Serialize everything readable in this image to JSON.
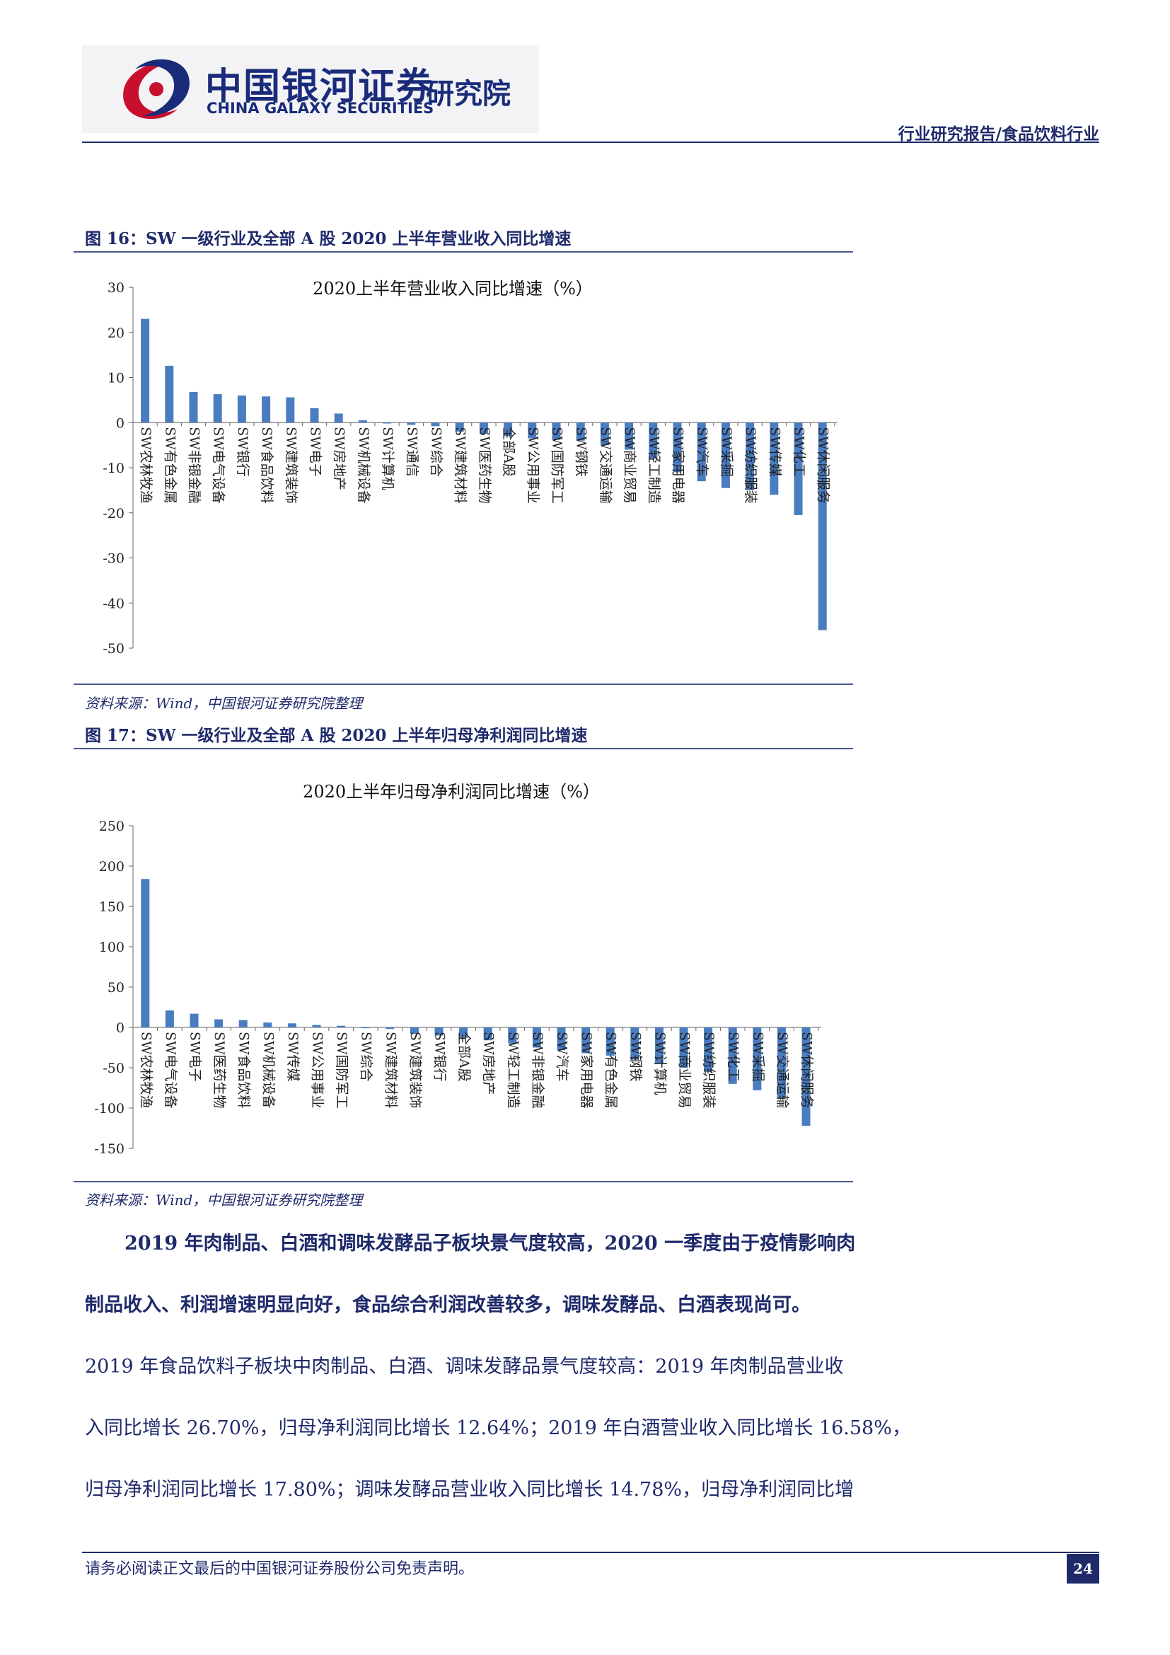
{
  "header": {
    "logo_cn": "中国银河证券",
    "logo_en": "CHINA GALAXY SECURITIES",
    "logo_institute": "研究院",
    "report_type": "行业研究报告/食品饮料行业"
  },
  "colors": {
    "brand": "#1f2a6b",
    "bar": "#4a7cc0",
    "logo_red": "#c8102e"
  },
  "figure16": {
    "caption": "图 16：SW 一级行业及全部 A 股 2020 上半年营业收入同比增速",
    "source": "资料来源：Wind，中国银河证券研究院整理"
  },
  "figure17": {
    "caption": "图 17：SW 一级行业及全部 A 股 2020 上半年归母净利润同比增速",
    "source": "资料来源：Wind，中国银河证券研究院整理"
  },
  "chart_data": [
    {
      "type": "bar",
      "title": "2020上半年营业收入同比增速（%）",
      "categories": [
        "SW农林牧渔",
        "SW有色金属",
        "SW非银金融",
        "SW电气设备",
        "SW银行",
        "SW食品饮料",
        "SW建筑装饰",
        "SW电子",
        "SW房地产",
        "SW机械设备",
        "SW计算机",
        "SW通信",
        "SW综合",
        "SW建筑材料",
        "SW医药生物",
        "全部A股",
        "SW公用事业",
        "SW国防军工",
        "SW钢铁",
        "SW交通运输",
        "SW商业贸易",
        "SW轻工制造",
        "SW家用电器",
        "SW汽车",
        "SW采掘",
        "SW纺织服装",
        "SW传媒",
        "SW化工",
        "SW休闲服务"
      ],
      "values": [
        23.0,
        12.6,
        6.8,
        6.3,
        6.0,
        5.8,
        5.6,
        3.2,
        2.0,
        0.5,
        -0.2,
        -0.5,
        -0.8,
        -2.0,
        -2.5,
        -3.0,
        -3.5,
        -3.8,
        -4.0,
        -5.0,
        -6.0,
        -8.0,
        -11.0,
        -13.0,
        -14.5,
        -15.0,
        -16.0,
        -20.5,
        -46.0
      ],
      "ylim": [
        -50,
        30
      ],
      "yticks": [
        30,
        20,
        10,
        0,
        -10,
        -20,
        -30,
        -40,
        -50
      ]
    },
    {
      "type": "bar",
      "title": "2020上半年归母净利润同比增速（%）",
      "categories": [
        "SW农林牧渔",
        "SW电气设备",
        "SW电子",
        "SW医药生物",
        "SW食品饮料",
        "SW机械设备",
        "SW传媒",
        "SW公用事业",
        "SW国防军工",
        "SW综合",
        "SW建筑材料",
        "SW建筑装饰",
        "SW银行",
        "全部A股",
        "SW房地产",
        "SW轻工制造",
        "SW非银金融",
        "SW汽车",
        "SW家用电器",
        "SW有色金属",
        "SW钢铁",
        "SW计算机",
        "SW商业贸易",
        "SW纺织服装",
        "SW化工",
        "SW采掘",
        "SW交通运输",
        "SW休闲服务"
      ],
      "values": [
        184,
        21,
        17,
        10,
        9,
        6,
        5,
        3,
        2,
        -1,
        -2,
        -8,
        -10,
        -13,
        -16,
        -20,
        -25,
        -28,
        -32,
        -35,
        -40,
        -45,
        -50,
        -55,
        -70,
        -78,
        -88,
        -122
      ],
      "ylim": [
        -150,
        250
      ],
      "yticks": [
        250,
        200,
        150,
        100,
        50,
        0,
        -50,
        -100,
        -150
      ]
    }
  ],
  "paragraphs": {
    "bold_line1": "2019 年肉制品、白酒和调味发酵品子板块景气度较高，2020 一季度由于疫情影响肉",
    "bold_line2": "制品收入、利润增速明显向好，食品综合利润改善较多，调味发酵品、白酒表现尚可。",
    "line3": "2019 年食品饮料子板块中肉制品、白酒、调味发酵品景气度较高：2019 年肉制品营业收",
    "line4": "入同比增长 26.70%，归母净利润同比增长 12.64%；2019 年白酒营业收入同比增长 16.58%，",
    "line5": "归母净利润同比增长 17.80%；调味发酵品营业收入同比增长 14.78%，归母净利润同比增"
  },
  "footer": {
    "disclaimer": "请务必阅读正文最后的中国银河证券股份公司免责声明。",
    "page_number": "24"
  }
}
